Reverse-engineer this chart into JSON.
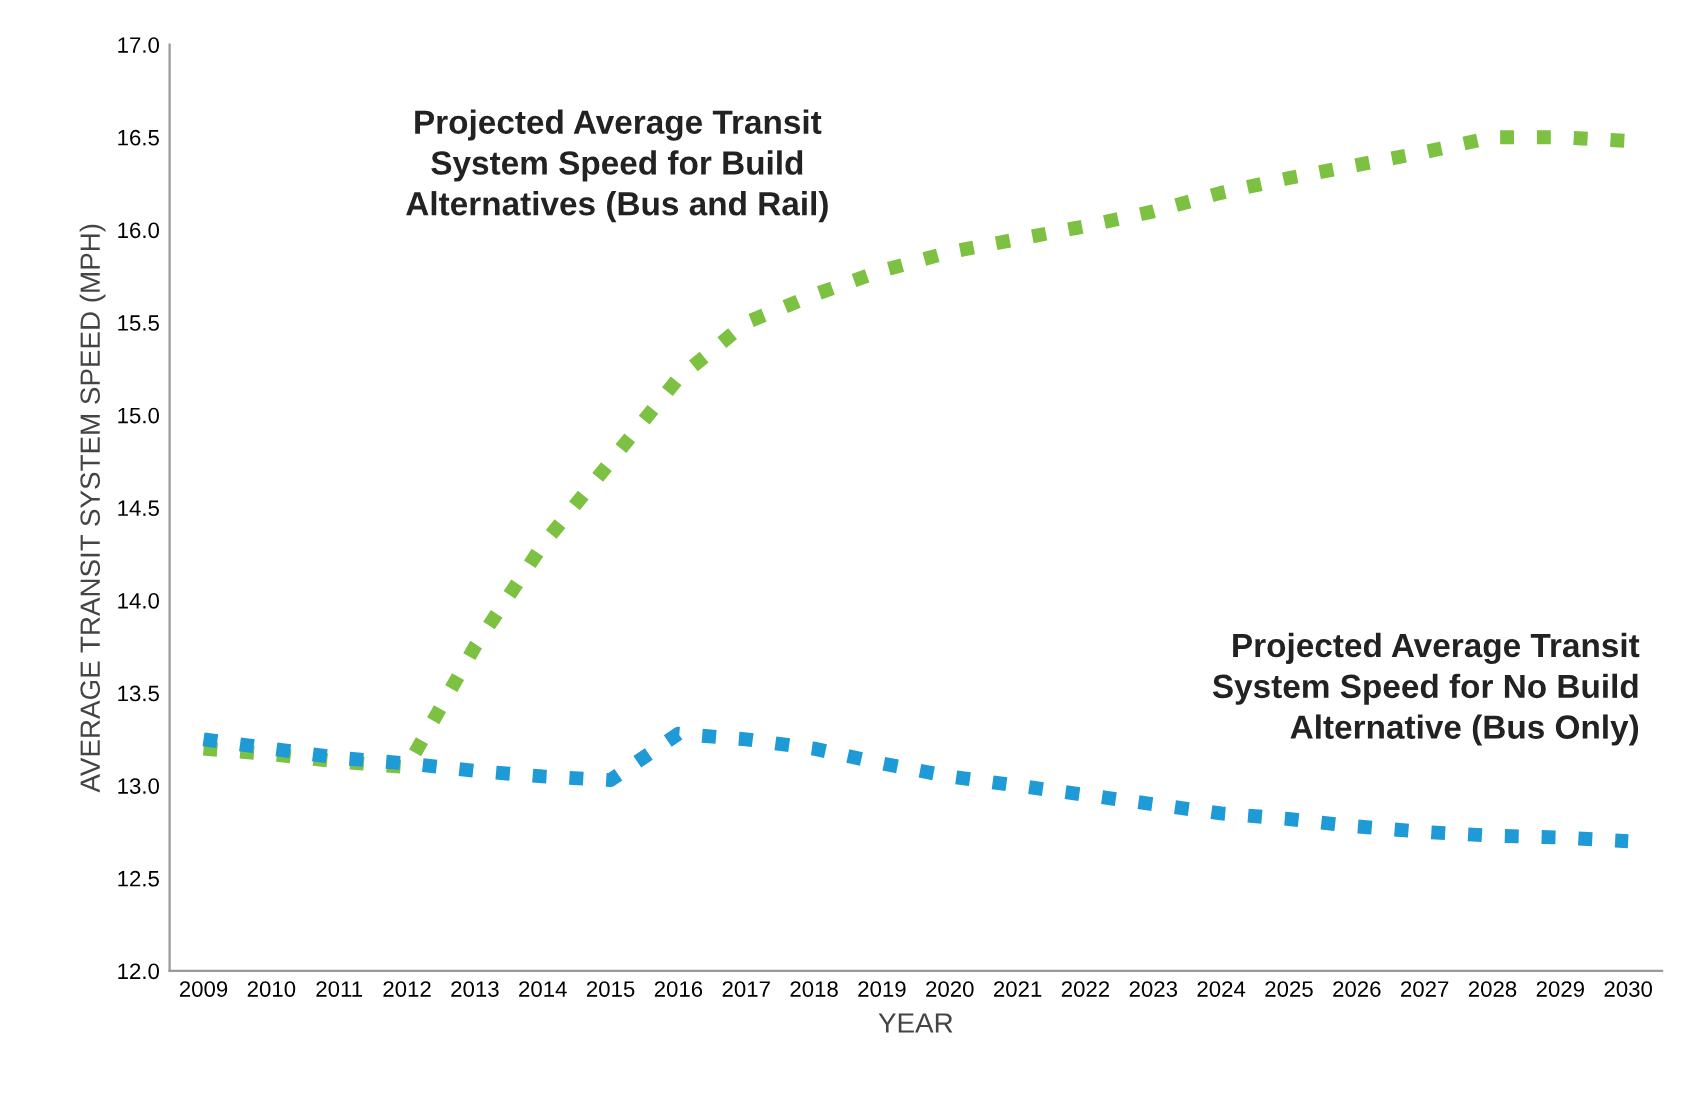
{
  "chart_data": {
    "type": "line",
    "xlabel": "YEAR",
    "ylabel": "AVERAGE TRANSIT SYSTEM SPEED (MPH)",
    "categories": [
      "2009",
      "2010",
      "2011",
      "2012",
      "2013",
      "2014",
      "2015",
      "2016",
      "2017",
      "2018",
      "2019",
      "2020",
      "2021",
      "2022",
      "2023",
      "2024",
      "2025",
      "2026",
      "2027",
      "2028",
      "2029",
      "2030"
    ],
    "series": [
      {
        "name": "Projected Average Transit\nSystem Speed for Build\nAlternatives (Bus and Rail)",
        "color": "#7cc142",
        "values": [
          13.2,
          13.17,
          13.13,
          13.1,
          13.75,
          14.3,
          14.75,
          15.2,
          15.5,
          15.65,
          15.78,
          15.88,
          15.95,
          16.02,
          16.1,
          16.2,
          16.28,
          16.35,
          16.42,
          16.5,
          16.5,
          16.48
        ]
      },
      {
        "name": "Projected Average Transit\nSystem Speed for No Build\nAlternative (Bus Only)",
        "color": "#1e9ad6",
        "values": [
          13.25,
          13.2,
          13.15,
          13.12,
          13.08,
          13.05,
          13.03,
          13.28,
          13.25,
          13.2,
          13.12,
          13.05,
          13.0,
          12.95,
          12.9,
          12.85,
          12.82,
          12.78,
          12.75,
          12.73,
          12.72,
          12.7
        ]
      }
    ],
    "ylim": [
      12.0,
      17.0
    ],
    "yticks": [
      {
        "value": 12.0,
        "label": "12.0"
      },
      {
        "value": 12.5,
        "label": "12.5"
      },
      {
        "value": 13.0,
        "label": "13.0"
      },
      {
        "value": 13.5,
        "label": "13.5"
      },
      {
        "value": 14.0,
        "label": "14.0"
      },
      {
        "value": 14.5,
        "label": "14.5"
      },
      {
        "value": 15.0,
        "label": "15.0"
      },
      {
        "value": 15.5,
        "label": "15.5"
      },
      {
        "value": 16.0,
        "label": "16.0"
      },
      {
        "value": 16.5,
        "label": "16.5"
      },
      {
        "value": 17.0,
        "label": "17.0"
      }
    ],
    "grid": false,
    "legend": false,
    "line_style": "dotted",
    "marker": "none"
  }
}
